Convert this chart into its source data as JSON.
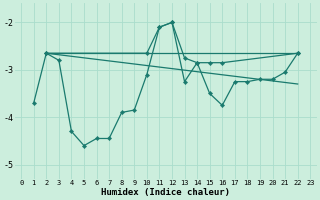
{
  "xlabel": "Humidex (Indice chaleur)",
  "background_color": "#cceedd",
  "grid_color": "#aaddcc",
  "line_color": "#1a7a6e",
  "xlim": [
    -0.5,
    23.5
  ],
  "ylim": [
    -5.3,
    -1.6
  ],
  "yticks": [
    -5,
    -4,
    -3,
    -2
  ],
  "xticks": [
    0,
    1,
    2,
    3,
    4,
    5,
    6,
    7,
    8,
    9,
    10,
    11,
    12,
    13,
    14,
    15,
    16,
    17,
    18,
    19,
    20,
    21,
    22,
    23
  ],
  "series1_x": [
    1,
    2,
    3,
    4,
    5,
    6,
    7,
    8,
    9,
    10,
    11,
    12,
    13,
    14,
    15,
    16,
    17,
    18,
    19,
    20,
    21,
    22
  ],
  "series1_y": [
    -3.7,
    -2.65,
    -2.8,
    -4.3,
    -4.6,
    -4.45,
    -4.45,
    -3.9,
    -3.85,
    -3.1,
    -2.1,
    -2.0,
    -3.25,
    -2.85,
    -3.5,
    -3.75,
    -3.25,
    -3.25,
    -3.2,
    -3.2,
    -3.05,
    -2.65
  ],
  "series2_x": [
    2,
    10,
    11,
    12,
    13,
    14,
    15,
    16,
    22
  ],
  "series2_y": [
    -2.65,
    -2.65,
    -2.1,
    -2.0,
    -2.75,
    -2.85,
    -2.85,
    -2.85,
    -2.65
  ],
  "trendline1_x": [
    2,
    22
  ],
  "trendline1_y": [
    -2.65,
    -2.65
  ],
  "trendline2_x": [
    2,
    22
  ],
  "trendline2_y": [
    -2.65,
    -3.3
  ]
}
